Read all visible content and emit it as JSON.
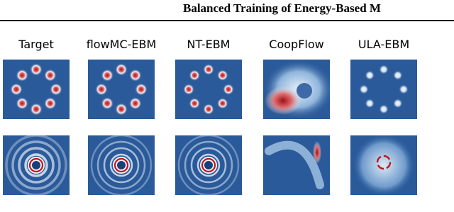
{
  "header": {
    "title": "Balanced Training of Energy-Based M"
  },
  "figure": {
    "columns": [
      "Target",
      "flowMC-EBM",
      "NT-EBM",
      "CoopFlow",
      "ULA-EBM"
    ]
  }
}
